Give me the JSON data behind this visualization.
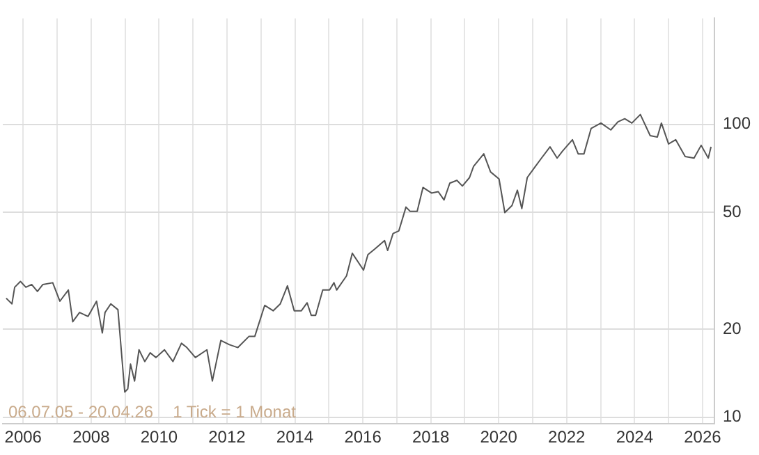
{
  "chart_data": {
    "type": "line",
    "x": [
      2005.5,
      2005.67,
      2005.75,
      2005.92,
      2006.08,
      2006.25,
      2006.42,
      2006.58,
      2006.87,
      2007.08,
      2007.33,
      2007.46,
      2007.66,
      2007.91,
      2008.16,
      2008.33,
      2008.41,
      2008.58,
      2008.79,
      2008.99,
      2009.08,
      2009.16,
      2009.28,
      2009.41,
      2009.58,
      2009.74,
      2009.91,
      2010.16,
      2010.41,
      2010.66,
      2010.82,
      2011.07,
      2011.41,
      2011.57,
      2011.82,
      2012.07,
      2012.32,
      2012.65,
      2012.82,
      2013.11,
      2013.36,
      2013.57,
      2013.78,
      2013.98,
      2014.19,
      2014.36,
      2014.48,
      2014.61,
      2014.82,
      2015.02,
      2015.15,
      2015.23,
      2015.52,
      2015.69,
      2016.02,
      2016.15,
      2016.35,
      2016.64,
      2016.73,
      2016.89,
      2017.06,
      2017.27,
      2017.39,
      2017.6,
      2017.77,
      2018.02,
      2018.22,
      2018.39,
      2018.56,
      2018.77,
      2018.93,
      2019.14,
      2019.26,
      2019.56,
      2019.76,
      2020.01,
      2020.18,
      2020.39,
      2020.55,
      2020.68,
      2020.84,
      2021.05,
      2021.26,
      2021.51,
      2021.72,
      2021.88,
      2022.17,
      2022.34,
      2022.51,
      2022.72,
      2023.01,
      2023.3,
      2023.51,
      2023.71,
      2023.92,
      2024.17,
      2024.46,
      2024.67,
      2024.79,
      2025.0,
      2025.21,
      2025.49,
      2025.75,
      2025.96,
      2026.17,
      2026.25
    ],
    "series": [
      {
        "color": "#555555",
        "values": [
          25.5,
          24.4,
          27.8,
          29.1,
          27.8,
          28.4,
          26.9,
          28.4,
          28.8,
          24.9,
          27.2,
          21.2,
          22.8,
          22.1,
          24.9,
          19.4,
          22.8,
          24.4,
          23.3,
          12.2,
          12.5,
          15.2,
          13.3,
          17.0,
          15.5,
          16.6,
          16.0,
          17.0,
          15.5,
          17.9,
          17.3,
          16.0,
          17.0,
          13.3,
          18.3,
          17.7,
          17.3,
          18.9,
          18.9,
          24.1,
          23.1,
          24.4,
          28.1,
          23.1,
          23.1,
          24.6,
          22.3,
          22.3,
          27.2,
          27.2,
          28.8,
          27.2,
          30.4,
          36.3,
          31.8,
          35.9,
          37.5,
          40.1,
          37.1,
          42.4,
          43.3,
          52.2,
          50.5,
          50.5,
          60.9,
          58.3,
          58.9,
          55.2,
          63.0,
          64.4,
          61.6,
          65.8,
          71.9,
          79.3,
          68.8,
          65.1,
          50.0,
          52.8,
          59.6,
          51.6,
          65.8,
          71.1,
          76.7,
          83.8,
          76.7,
          81.1,
          88.6,
          79.3,
          79.3,
          96.8,
          101,
          95.7,
          102,
          104.5,
          101,
          108,
          91.5,
          90.5,
          101,
          85.7,
          88.6,
          77.6,
          76.7,
          84.8,
          76.7,
          83.8
        ]
      }
    ],
    "xlim": [
      2005.4,
      2026.35
    ],
    "xticks": [
      2006,
      {
        "value": 2007,
        "label": null
      },
      2008,
      {
        "value": 2009,
        "label": null
      },
      2010,
      {
        "value": 2011,
        "label": null
      },
      2012,
      {
        "value": 2013,
        "label": null
      },
      2014,
      {
        "value": 2015,
        "label": null
      },
      2016,
      {
        "value": 2017,
        "label": null
      },
      2018,
      {
        "value": 2019,
        "label": null
      },
      2020,
      {
        "value": 2021,
        "label": null
      },
      2022,
      {
        "value": 2023,
        "label": null
      },
      2024,
      {
        "value": 2025,
        "label": null
      },
      2026
    ],
    "ylim": [
      9.5,
      230
    ],
    "yticks": [
      10,
      20,
      50,
      100
    ],
    "log": true,
    "grid": true,
    "annotations": [
      "06.07.05 - 20.04.26",
      "1 Tick = 1 Monat"
    ]
  }
}
